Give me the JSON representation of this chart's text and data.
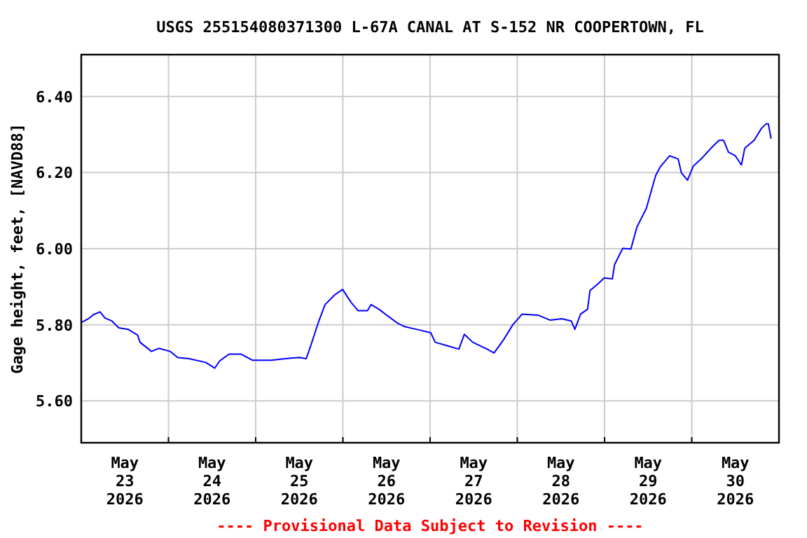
{
  "chart_data": {
    "type": "line",
    "title": "USGS 255154080371300 L-67A CANAL AT S-152 NR COOPERTOWN, FL",
    "ylabel": "Gage height, feet, [NAVD88]",
    "annotations": [
      "---- Provisional Data Subject to Revision ----"
    ],
    "xlim": [
      "2026-05-23T00:00",
      "2026-05-31T00:00"
    ],
    "xticks": [
      {
        "value": "2026-05-23T00:00",
        "label": null
      },
      {
        "value": "2026-05-24T00:00",
        "label": null
      },
      {
        "value": "2026-05-25T00:00",
        "label": null
      },
      {
        "value": "2026-05-26T00:00",
        "label": null
      },
      {
        "value": "2026-05-27T00:00",
        "label": null
      },
      {
        "value": "2026-05-28T00:00",
        "label": null
      },
      {
        "value": "2026-05-29T00:00",
        "label": null
      },
      {
        "value": "2026-05-30T00:00",
        "label": null
      },
      {
        "value": "2026-05-31T00:00",
        "label": null
      },
      {
        "value": "2026-05-23T12:00",
        "label": "May\n23\n2026"
      },
      {
        "value": "2026-05-24T12:00",
        "label": "May\n24\n2026"
      },
      {
        "value": "2026-05-25T12:00",
        "label": "May\n25\n2026"
      },
      {
        "value": "2026-05-26T12:00",
        "label": "May\n26\n2026"
      },
      {
        "value": "2026-05-27T12:00",
        "label": "May\n27\n2026"
      },
      {
        "value": "2026-05-28T12:00",
        "label": "May\n28\n2026"
      },
      {
        "value": "2026-05-29T12:00",
        "label": "May\n29\n2026"
      },
      {
        "value": "2026-05-30T12:00",
        "label": "May\n30\n2026"
      }
    ],
    "ylim": [
      5.49,
      6.51
    ],
    "yticks": [
      {
        "value": 5.6,
        "label": "5.60"
      },
      {
        "value": 5.8,
        "label": "5.80"
      },
      {
        "value": 6.0,
        "label": "6.00"
      },
      {
        "value": 6.2,
        "label": "6.20"
      },
      {
        "value": 6.4,
        "label": "6.40"
      }
    ],
    "grid": true,
    "line_style": "solid",
    "series": [
      {
        "color": "#0000ff",
        "x": [
          "2026-05-23T00:00",
          "2026-05-23T02:00",
          "2026-05-23T03:15",
          "2026-05-23T05:10",
          "2026-05-23T06:30",
          "2026-05-23T08:25",
          "2026-05-23T10:20",
          "2026-05-23T12:55",
          "2026-05-23T15:30",
          "2026-05-23T16:10",
          "2026-05-23T19:20",
          "2026-05-23T21:20",
          "2026-05-24T00:30",
          "2026-05-24T02:30",
          "2026-05-24T05:40",
          "2026-05-24T10:15",
          "2026-05-24T12:45",
          "2026-05-24T14:05",
          "2026-05-24T16:40",
          "2026-05-24T19:55",
          "2026-05-24T23:05",
          "2026-05-25T04:15",
          "2026-05-25T08:10",
          "2026-05-25T12:00",
          "2026-05-25T13:55",
          "2026-05-25T15:15",
          "2026-05-25T17:10",
          "2026-05-25T19:05",
          "2026-05-25T21:40",
          "2026-05-25T23:55",
          "2026-05-26T02:15",
          "2026-05-26T04:10",
          "2026-05-26T06:45",
          "2026-05-26T07:45",
          "2026-05-26T09:55",
          "2026-05-26T12:30",
          "2026-05-26T15:05",
          "2026-05-26T17:00",
          "2026-05-26T20:15",
          "2026-05-27T00:10",
          "2026-05-27T01:25",
          "2026-05-27T04:40",
          "2026-05-27T07:55",
          "2026-05-27T09:25",
          "2026-05-27T11:45",
          "2026-05-27T15:40",
          "2026-05-27T17:35",
          "2026-05-27T20:10",
          "2026-05-27T22:45",
          "2026-05-28T01:20",
          "2026-05-28T05:50",
          "2026-05-28T09:05",
          "2026-05-28T12:15",
          "2026-05-28T14:50",
          "2026-05-28T15:50",
          "2026-05-28T17:25",
          "2026-05-28T19:20",
          "2026-05-28T20:00",
          "2026-05-28T22:20",
          "2026-05-28T23:55",
          "2026-05-29T02:10",
          "2026-05-29T02:45",
          "2026-05-29T05:00",
          "2026-05-29T07:15",
          "2026-05-29T08:55",
          "2026-05-29T11:30",
          "2026-05-29T14:05",
          "2026-05-29T15:20",
          "2026-05-29T17:55",
          "2026-05-29T20:15",
          "2026-05-29T21:10",
          "2026-05-29T22:50",
          "2026-05-30T00:25",
          "2026-05-30T03:00",
          "2026-05-30T05:35",
          "2026-05-30T07:30",
          "2026-05-30T08:45",
          "2026-05-30T10:05",
          "2026-05-30T12:00",
          "2026-05-30T13:40",
          "2026-05-30T14:35",
          "2026-05-30T17:10",
          "2026-05-30T19:10",
          "2026-05-30T20:25",
          "2026-05-30T21:05",
          "2026-05-30T21:50"
        ],
        "values": [
          5.806,
          5.816,
          5.826,
          5.834,
          5.818,
          5.81,
          5.792,
          5.788,
          5.773,
          5.754,
          5.73,
          5.738,
          5.73,
          5.714,
          5.711,
          5.701,
          5.686,
          5.705,
          5.723,
          5.723,
          5.707,
          5.707,
          5.711,
          5.714,
          5.711,
          5.748,
          5.804,
          5.853,
          5.878,
          5.893,
          5.859,
          5.837,
          5.837,
          5.853,
          5.841,
          5.822,
          5.804,
          5.795,
          5.788,
          5.779,
          5.754,
          5.745,
          5.736,
          5.775,
          5.754,
          5.736,
          5.726,
          5.76,
          5.8,
          5.828,
          5.825,
          5.812,
          5.816,
          5.81,
          5.788,
          5.828,
          5.841,
          5.89,
          5.909,
          5.923,
          5.921,
          5.958,
          6.001,
          5.999,
          6.057,
          6.106,
          6.193,
          6.215,
          6.244,
          6.236,
          6.199,
          6.18,
          6.217,
          6.24,
          6.267,
          6.285,
          6.285,
          6.254,
          6.244,
          6.22,
          6.264,
          6.285,
          6.316,
          6.328,
          6.328,
          6.289
        ]
      }
    ]
  }
}
